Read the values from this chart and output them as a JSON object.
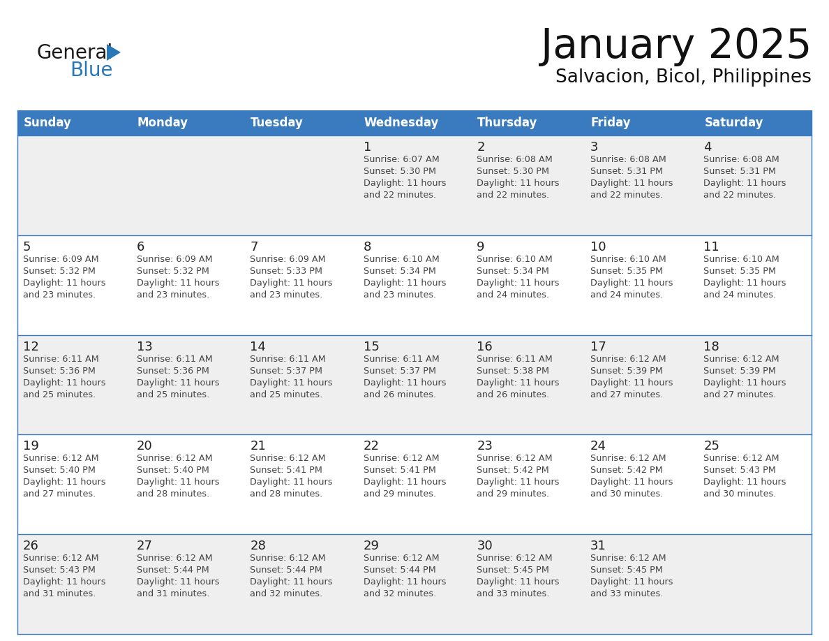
{
  "title": "January 2025",
  "subtitle": "Salvacion, Bicol, Philippines",
  "days_of_week": [
    "Sunday",
    "Monday",
    "Tuesday",
    "Wednesday",
    "Thursday",
    "Friday",
    "Saturday"
  ],
  "header_bg": "#3a7abf",
  "header_text": "#ffffff",
  "row_bg_odd": "#efefef",
  "row_bg_even": "#ffffff",
  "cell_border": "#3a7abf",
  "day_num_color": "#222222",
  "text_color": "#444444",
  "title_color": "#111111",
  "calendar_data": [
    [
      null,
      null,
      null,
      {
        "day": 1,
        "sunrise": "6:07 AM",
        "sunset": "5:30 PM",
        "daylight": "11 hours and 22 minutes"
      },
      {
        "day": 2,
        "sunrise": "6:08 AM",
        "sunset": "5:30 PM",
        "daylight": "11 hours and 22 minutes"
      },
      {
        "day": 3,
        "sunrise": "6:08 AM",
        "sunset": "5:31 PM",
        "daylight": "11 hours and 22 minutes"
      },
      {
        "day": 4,
        "sunrise": "6:08 AM",
        "sunset": "5:31 PM",
        "daylight": "11 hours and 22 minutes"
      }
    ],
    [
      {
        "day": 5,
        "sunrise": "6:09 AM",
        "sunset": "5:32 PM",
        "daylight": "11 hours and 23 minutes"
      },
      {
        "day": 6,
        "sunrise": "6:09 AM",
        "sunset": "5:32 PM",
        "daylight": "11 hours and 23 minutes"
      },
      {
        "day": 7,
        "sunrise": "6:09 AM",
        "sunset": "5:33 PM",
        "daylight": "11 hours and 23 minutes"
      },
      {
        "day": 8,
        "sunrise": "6:10 AM",
        "sunset": "5:34 PM",
        "daylight": "11 hours and 23 minutes"
      },
      {
        "day": 9,
        "sunrise": "6:10 AM",
        "sunset": "5:34 PM",
        "daylight": "11 hours and 24 minutes"
      },
      {
        "day": 10,
        "sunrise": "6:10 AM",
        "sunset": "5:35 PM",
        "daylight": "11 hours and 24 minutes"
      },
      {
        "day": 11,
        "sunrise": "6:10 AM",
        "sunset": "5:35 PM",
        "daylight": "11 hours and 24 minutes"
      }
    ],
    [
      {
        "day": 12,
        "sunrise": "6:11 AM",
        "sunset": "5:36 PM",
        "daylight": "11 hours and 25 minutes"
      },
      {
        "day": 13,
        "sunrise": "6:11 AM",
        "sunset": "5:36 PM",
        "daylight": "11 hours and 25 minutes"
      },
      {
        "day": 14,
        "sunrise": "6:11 AM",
        "sunset": "5:37 PM",
        "daylight": "11 hours and 25 minutes"
      },
      {
        "day": 15,
        "sunrise": "6:11 AM",
        "sunset": "5:37 PM",
        "daylight": "11 hours and 26 minutes"
      },
      {
        "day": 16,
        "sunrise": "6:11 AM",
        "sunset": "5:38 PM",
        "daylight": "11 hours and 26 minutes"
      },
      {
        "day": 17,
        "sunrise": "6:12 AM",
        "sunset": "5:39 PM",
        "daylight": "11 hours and 27 minutes"
      },
      {
        "day": 18,
        "sunrise": "6:12 AM",
        "sunset": "5:39 PM",
        "daylight": "11 hours and 27 minutes"
      }
    ],
    [
      {
        "day": 19,
        "sunrise": "6:12 AM",
        "sunset": "5:40 PM",
        "daylight": "11 hours and 27 minutes"
      },
      {
        "day": 20,
        "sunrise": "6:12 AM",
        "sunset": "5:40 PM",
        "daylight": "11 hours and 28 minutes"
      },
      {
        "day": 21,
        "sunrise": "6:12 AM",
        "sunset": "5:41 PM",
        "daylight": "11 hours and 28 minutes"
      },
      {
        "day": 22,
        "sunrise": "6:12 AM",
        "sunset": "5:41 PM",
        "daylight": "11 hours and 29 minutes"
      },
      {
        "day": 23,
        "sunrise": "6:12 AM",
        "sunset": "5:42 PM",
        "daylight": "11 hours and 29 minutes"
      },
      {
        "day": 24,
        "sunrise": "6:12 AM",
        "sunset": "5:42 PM",
        "daylight": "11 hours and 30 minutes"
      },
      {
        "day": 25,
        "sunrise": "6:12 AM",
        "sunset": "5:43 PM",
        "daylight": "11 hours and 30 minutes"
      }
    ],
    [
      {
        "day": 26,
        "sunrise": "6:12 AM",
        "sunset": "5:43 PM",
        "daylight": "11 hours and 31 minutes"
      },
      {
        "day": 27,
        "sunrise": "6:12 AM",
        "sunset": "5:44 PM",
        "daylight": "11 hours and 31 minutes"
      },
      {
        "day": 28,
        "sunrise": "6:12 AM",
        "sunset": "5:44 PM",
        "daylight": "11 hours and 32 minutes"
      },
      {
        "day": 29,
        "sunrise": "6:12 AM",
        "sunset": "5:44 PM",
        "daylight": "11 hours and 32 minutes"
      },
      {
        "day": 30,
        "sunrise": "6:12 AM",
        "sunset": "5:45 PM",
        "daylight": "11 hours and 33 minutes"
      },
      {
        "day": 31,
        "sunrise": "6:12 AM",
        "sunset": "5:45 PM",
        "daylight": "11 hours and 33 minutes"
      },
      null
    ]
  ]
}
